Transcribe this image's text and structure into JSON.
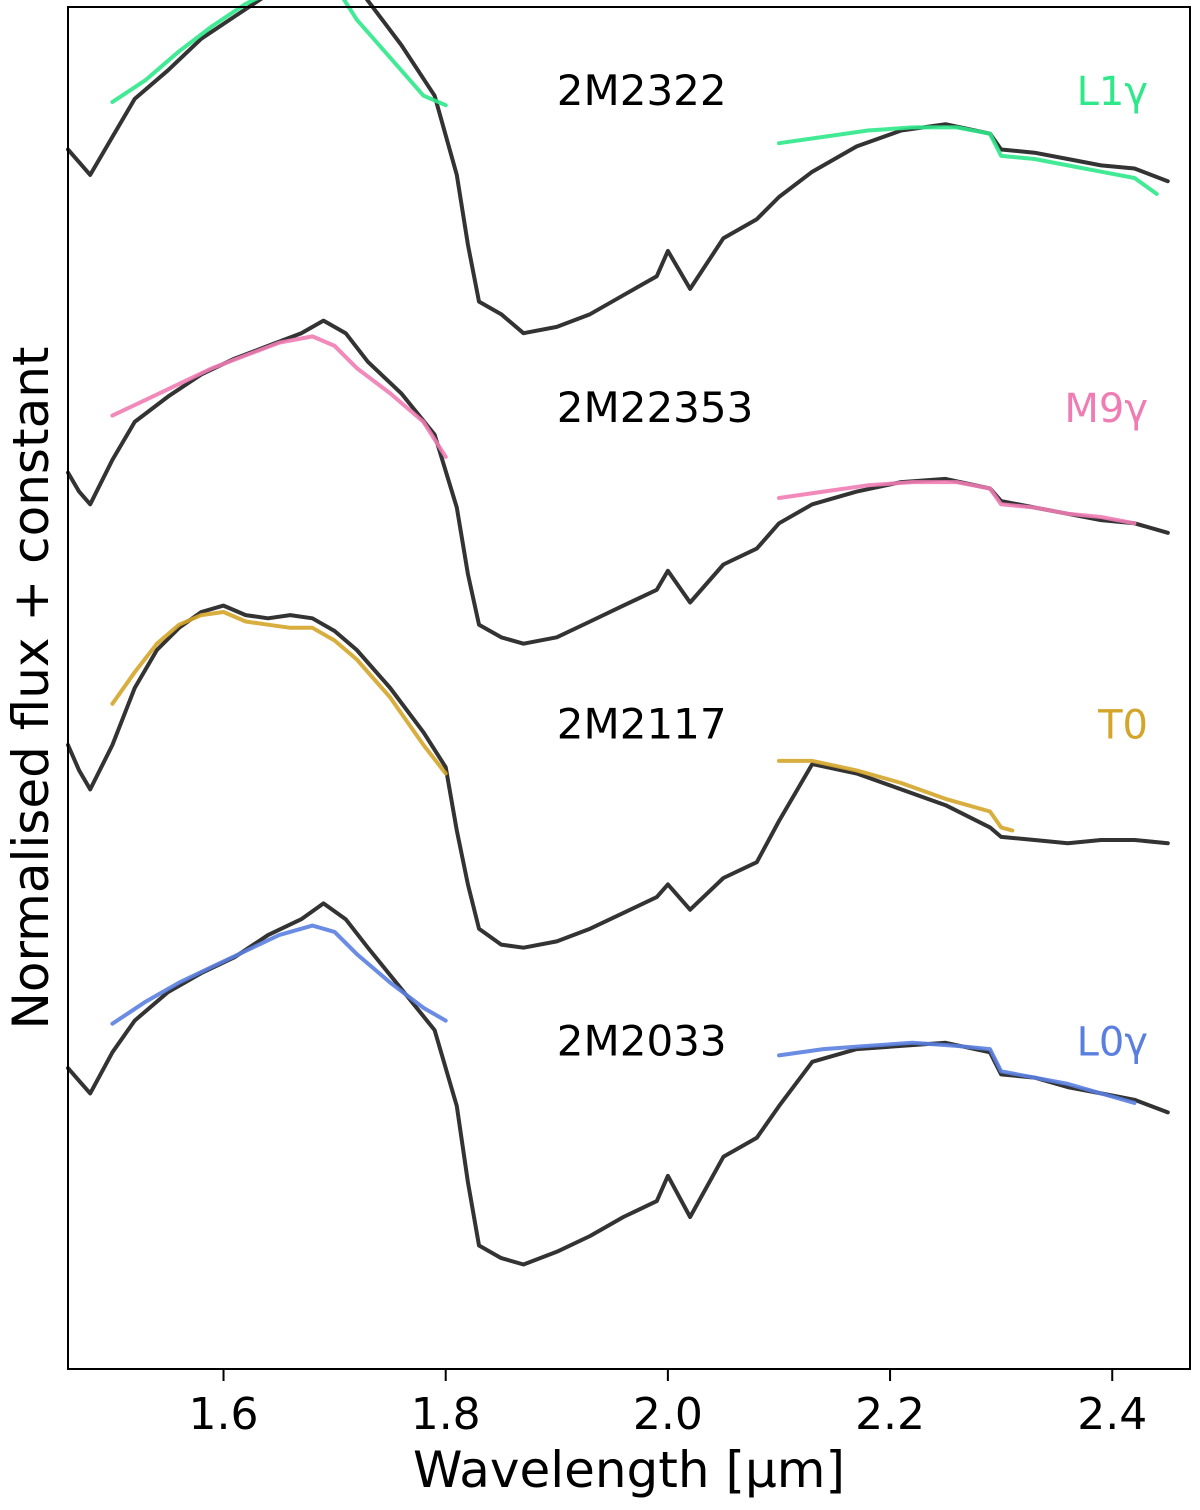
{
  "chart_data": {
    "type": "line",
    "title": "",
    "xlabel": "Wavelength [μm]",
    "ylabel": "Normalised flux + constant",
    "xlim": [
      1.46,
      2.47
    ],
    "ylim": [
      -0.15,
      4.15
    ],
    "x_ticks": [
      1.6,
      1.8,
      2.0,
      2.2,
      2.4
    ],
    "x_tick_labels": [
      "1.6",
      "1.8",
      "2.0",
      "2.2",
      "2.4"
    ],
    "y_ticks_shown": false,
    "grid": false,
    "colors": {
      "observed": "#333333",
      "L1γ": "#2ee88a",
      "M9γ": "#f07cb4",
      "T0": "#d4a52a",
      "L0γ": "#5b7fe0"
    },
    "panels": [
      {
        "object": "2M2322",
        "template": "L1γ",
        "template_color": "#2ee88a",
        "offset": 3.0,
        "observed": {
          "name": "2M2322",
          "x": [
            1.46,
            1.47,
            1.48,
            1.5,
            1.52,
            1.55,
            1.58,
            1.61,
            1.64,
            1.67,
            1.69,
            1.71,
            1.73,
            1.76,
            1.79,
            1.81,
            1.82,
            1.83,
            1.85,
            1.87,
            1.9,
            1.93,
            1.96,
            1.99,
            2.0,
            2.02,
            2.05,
            2.08,
            2.1,
            2.13,
            2.17,
            2.21,
            2.25,
            2.29,
            2.3,
            2.33,
            2.36,
            2.39,
            2.42,
            2.45
          ],
          "y": [
            0.7,
            0.66,
            0.62,
            0.74,
            0.86,
            0.95,
            1.05,
            1.12,
            1.19,
            1.25,
            1.3,
            1.27,
            1.17,
            1.03,
            0.87,
            0.62,
            0.4,
            0.22,
            0.18,
            0.12,
            0.14,
            0.18,
            0.24,
            0.3,
            0.38,
            0.26,
            0.42,
            0.48,
            0.55,
            0.63,
            0.71,
            0.76,
            0.78,
            0.75,
            0.7,
            0.69,
            0.67,
            0.65,
            0.64,
            0.6
          ]
        },
        "model": {
          "name": "L1γ",
          "segments": [
            {
              "x": [
                1.5,
                1.53,
                1.56,
                1.59,
                1.62,
                1.65,
                1.68,
                1.7,
                1.72,
                1.75,
                1.78,
                1.8
              ],
              "y": [
                0.85,
                0.92,
                1.01,
                1.09,
                1.16,
                1.21,
                1.24,
                1.22,
                1.11,
                0.99,
                0.87,
                0.84
              ]
            },
            {
              "x": [
                2.1,
                2.14,
                2.18,
                2.22,
                2.26,
                2.29,
                2.3,
                2.33,
                2.36,
                2.39,
                2.42,
                2.44
              ],
              "y": [
                0.72,
                0.74,
                0.76,
                0.77,
                0.77,
                0.75,
                0.68,
                0.67,
                0.65,
                0.63,
                0.61,
                0.56
              ]
            }
          ]
        }
      },
      {
        "object": "2M22353",
        "template": "M9γ",
        "template_color": "#f07cb4",
        "offset": 2.0,
        "observed": {
          "name": "2M22353",
          "x": [
            1.46,
            1.47,
            1.48,
            1.5,
            1.52,
            1.55,
            1.58,
            1.61,
            1.64,
            1.67,
            1.69,
            1.71,
            1.73,
            1.76,
            1.79,
            1.81,
            1.82,
            1.83,
            1.85,
            1.87,
            1.9,
            1.93,
            1.96,
            1.99,
            2.0,
            2.02,
            2.05,
            2.08,
            2.1,
            2.13,
            2.17,
            2.21,
            2.25,
            2.29,
            2.3,
            2.33,
            2.36,
            2.39,
            2.42,
            2.45
          ],
          "y": [
            0.68,
            0.62,
            0.58,
            0.72,
            0.84,
            0.92,
            0.99,
            1.04,
            1.08,
            1.12,
            1.16,
            1.12,
            1.03,
            0.93,
            0.8,
            0.57,
            0.36,
            0.2,
            0.16,
            0.14,
            0.16,
            0.21,
            0.26,
            0.31,
            0.37,
            0.27,
            0.39,
            0.44,
            0.52,
            0.58,
            0.62,
            0.65,
            0.66,
            0.63,
            0.59,
            0.57,
            0.55,
            0.53,
            0.52,
            0.49
          ]
        },
        "model": {
          "name": "M9γ",
          "segments": [
            {
              "x": [
                1.5,
                1.53,
                1.56,
                1.59,
                1.62,
                1.65,
                1.68,
                1.7,
                1.72,
                1.75,
                1.78,
                1.8
              ],
              "y": [
                0.86,
                0.91,
                0.96,
                1.01,
                1.05,
                1.09,
                1.11,
                1.08,
                1.01,
                0.93,
                0.84,
                0.73
              ]
            },
            {
              "x": [
                2.1,
                2.14,
                2.18,
                2.22,
                2.26,
                2.29,
                2.3,
                2.33,
                2.36,
                2.39,
                2.42
              ],
              "y": [
                0.6,
                0.62,
                0.64,
                0.65,
                0.65,
                0.63,
                0.58,
                0.57,
                0.55,
                0.54,
                0.52
              ]
            }
          ]
        }
      },
      {
        "object": "2M2117",
        "template": "T0",
        "template_color": "#d4a52a",
        "offset": 1.0,
        "observed": {
          "name": "2M2117",
          "x": [
            1.46,
            1.47,
            1.48,
            1.5,
            1.52,
            1.54,
            1.56,
            1.58,
            1.6,
            1.62,
            1.64,
            1.66,
            1.68,
            1.7,
            1.72,
            1.75,
            1.78,
            1.8,
            1.81,
            1.82,
            1.83,
            1.85,
            1.87,
            1.9,
            1.93,
            1.96,
            1.99,
            2.0,
            2.02,
            2.05,
            2.08,
            2.1,
            2.13,
            2.17,
            2.21,
            2.25,
            2.29,
            2.3,
            2.33,
            2.36,
            2.39,
            2.42,
            2.45
          ],
          "y": [
            0.82,
            0.74,
            0.68,
            0.82,
            1.0,
            1.12,
            1.19,
            1.24,
            1.26,
            1.23,
            1.22,
            1.23,
            1.22,
            1.18,
            1.12,
            1.0,
            0.86,
            0.75,
            0.55,
            0.38,
            0.24,
            0.19,
            0.18,
            0.2,
            0.24,
            0.29,
            0.34,
            0.38,
            0.3,
            0.4,
            0.45,
            0.58,
            0.76,
            0.73,
            0.68,
            0.63,
            0.56,
            0.53,
            0.52,
            0.51,
            0.52,
            0.52,
            0.51
          ]
        },
        "model": {
          "name": "T0",
          "segments": [
            {
              "x": [
                1.5,
                1.52,
                1.54,
                1.56,
                1.58,
                1.6,
                1.62,
                1.64,
                1.66,
                1.68,
                1.7,
                1.72,
                1.75,
                1.78,
                1.8
              ],
              "y": [
                0.95,
                1.05,
                1.14,
                1.2,
                1.23,
                1.24,
                1.21,
                1.2,
                1.19,
                1.19,
                1.15,
                1.09,
                0.97,
                0.82,
                0.73
              ]
            },
            {
              "x": [
                2.1,
                2.13,
                2.17,
                2.21,
                2.25,
                2.29,
                2.3,
                2.31
              ],
              "y": [
                0.77,
                0.77,
                0.74,
                0.7,
                0.65,
                0.61,
                0.56,
                0.55
              ]
            }
          ]
        }
      },
      {
        "object": "2M2033",
        "template": "L0γ",
        "template_color": "#5b7fe0",
        "offset": 0.0,
        "observed": {
          "name": "2M2033",
          "x": [
            1.46,
            1.47,
            1.48,
            1.5,
            1.52,
            1.55,
            1.58,
            1.61,
            1.64,
            1.67,
            1.69,
            1.71,
            1.73,
            1.76,
            1.79,
            1.81,
            1.82,
            1.83,
            1.85,
            1.87,
            1.9,
            1.93,
            1.96,
            1.99,
            2.0,
            2.02,
            2.05,
            2.08,
            2.1,
            2.13,
            2.17,
            2.21,
            2.25,
            2.29,
            2.3,
            2.33,
            2.36,
            2.39,
            2.42,
            2.45
          ],
          "y": [
            0.8,
            0.76,
            0.72,
            0.85,
            0.95,
            1.04,
            1.1,
            1.15,
            1.22,
            1.27,
            1.32,
            1.27,
            1.18,
            1.05,
            0.92,
            0.68,
            0.44,
            0.24,
            0.2,
            0.18,
            0.22,
            0.27,
            0.33,
            0.38,
            0.46,
            0.33,
            0.52,
            0.58,
            0.68,
            0.82,
            0.86,
            0.87,
            0.88,
            0.85,
            0.78,
            0.77,
            0.74,
            0.72,
            0.7,
            0.66
          ]
        },
        "model": {
          "name": "L0γ",
          "segments": [
            {
              "x": [
                1.5,
                1.53,
                1.56,
                1.59,
                1.62,
                1.65,
                1.68,
                1.7,
                1.72,
                1.75,
                1.78,
                1.8
              ],
              "y": [
                0.94,
                1.01,
                1.07,
                1.12,
                1.17,
                1.22,
                1.25,
                1.23,
                1.16,
                1.07,
                0.99,
                0.95
              ]
            },
            {
              "x": [
                2.1,
                2.14,
                2.18,
                2.22,
                2.26,
                2.29,
                2.3,
                2.33,
                2.36,
                2.39,
                2.42
              ],
              "y": [
                0.84,
                0.86,
                0.87,
                0.88,
                0.87,
                0.86,
                0.79,
                0.77,
                0.75,
                0.72,
                0.69
              ]
            }
          ]
        }
      }
    ]
  }
}
